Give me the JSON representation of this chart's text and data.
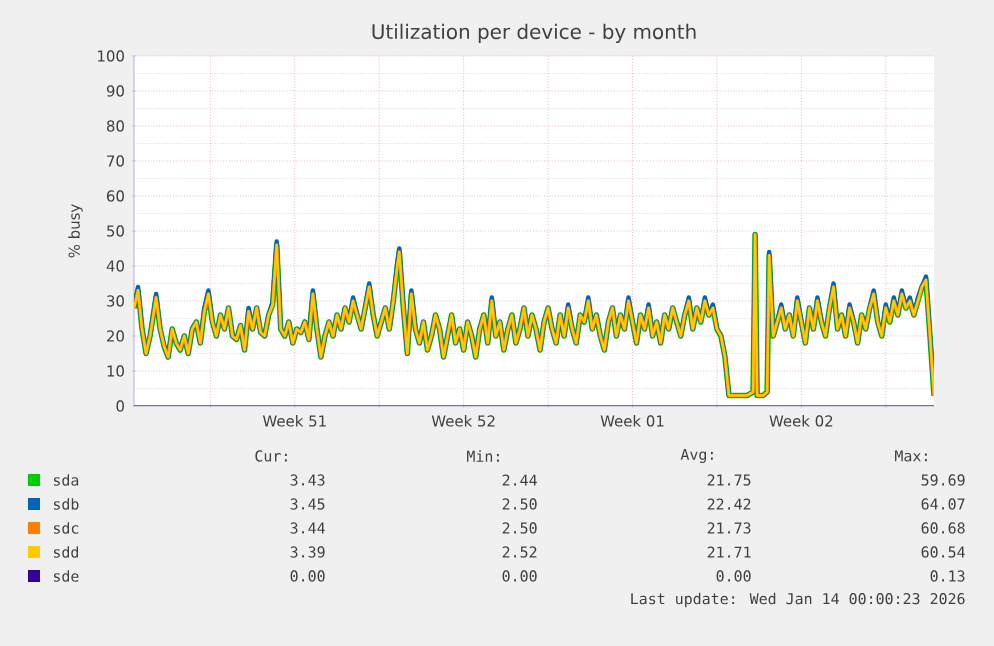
{
  "chart_data": {
    "type": "line",
    "title": "Utilization per device - by month",
    "ylabel": "% busy",
    "x": [
      "2025-12-11T20:00",
      "2025-12-12T00:00",
      "2025-12-12T04:00",
      "2025-12-12T08:00",
      "2025-12-12T12:00",
      "2025-12-12T18:00",
      "2025-12-12T22:00",
      "2025-12-13T02:00",
      "2025-12-13T06:00",
      "2025-12-13T10:00",
      "2025-12-13T14:00",
      "2025-12-13T18:00",
      "2025-12-13T22:00",
      "2025-12-14T02:00",
      "2025-12-14T06:00",
      "2025-12-14T10:00",
      "2025-12-14T14:00",
      "2025-12-14T18:00",
      "2025-12-14T22:00",
      "2025-12-15T02:00",
      "2025-12-15T06:00",
      "2025-12-15T10:00",
      "2025-12-15T14:00",
      "2025-12-15T18:00",
      "2025-12-15T22:00",
      "2025-12-16T02:00",
      "2025-12-16T06:00",
      "2025-12-16T10:00",
      "2025-12-16T14:00",
      "2025-12-16T18:00",
      "2025-12-16T22:00",
      "2025-12-17T02:00",
      "2025-12-17T06:00",
      "2025-12-17T10:00",
      "2025-12-17T14:00",
      "2025-12-17T18:00",
      "2025-12-17T22:00",
      "2025-12-18T02:00",
      "2025-12-18T06:00",
      "2025-12-18T10:00",
      "2025-12-18T14:00",
      "2025-12-18T18:00",
      "2025-12-18T22:00",
      "2025-12-19T02:00",
      "2025-12-19T06:00",
      "2025-12-19T10:00",
      "2025-12-19T14:00",
      "2025-12-19T18:00",
      "2025-12-19T22:00",
      "2025-12-20T02:00",
      "2025-12-20T06:00",
      "2025-12-20T10:00",
      "2025-12-20T14:00",
      "2025-12-20T18:00",
      "2025-12-20T22:00",
      "2025-12-21T02:00",
      "2025-12-21T06:00",
      "2025-12-21T10:00",
      "2025-12-21T14:00",
      "2025-12-21T18:00",
      "2025-12-21T22:00",
      "2025-12-22T02:00",
      "2025-12-22T06:00",
      "2025-12-22T10:00",
      "2025-12-22T14:00",
      "2025-12-22T18:00",
      "2025-12-22T20:00",
      "2025-12-23T00:00",
      "2025-12-23T04:00",
      "2025-12-23T08:00",
      "2025-12-23T12:00",
      "2025-12-23T16:00",
      "2025-12-23T20:00",
      "2025-12-24T00:00",
      "2025-12-24T04:00",
      "2025-12-24T08:00",
      "2025-12-24T12:00",
      "2025-12-24T16:00",
      "2025-12-24T20:00",
      "2025-12-25T00:00",
      "2025-12-25T04:00",
      "2025-12-25T08:00",
      "2025-12-25T12:00",
      "2025-12-25T16:00",
      "2025-12-25T20:00",
      "2025-12-26T00:00",
      "2025-12-26T04:00",
      "2025-12-26T08:00",
      "2025-12-26T12:00",
      "2025-12-26T16:00",
      "2025-12-26T20:00",
      "2025-12-27T00:00",
      "2025-12-27T04:00",
      "2025-12-27T08:00",
      "2025-12-27T12:00",
      "2025-12-27T16:00",
      "2025-12-27T20:00",
      "2025-12-28T00:00",
      "2025-12-28T04:00",
      "2025-12-28T08:00",
      "2025-12-28T12:00",
      "2025-12-28T16:00",
      "2025-12-28T20:00",
      "2025-12-29T00:00",
      "2025-12-29T04:00",
      "2025-12-29T08:00",
      "2025-12-29T12:00",
      "2025-12-29T16:00",
      "2025-12-29T20:00",
      "2025-12-30T00:00",
      "2025-12-30T04:00",
      "2025-12-30T08:00",
      "2025-12-30T12:00",
      "2025-12-30T16:00",
      "2025-12-30T20:00",
      "2025-12-31T00:00",
      "2025-12-31T04:00",
      "2025-12-31T08:00",
      "2025-12-31T12:00",
      "2025-12-31T16:00",
      "2025-12-31T20:00",
      "2026-01-01T00:00",
      "2026-01-01T04:00",
      "2026-01-01T08:00",
      "2026-01-01T12:00",
      "2026-01-01T16:00",
      "2026-01-01T20:00",
      "2026-01-02T00:00",
      "2026-01-02T04:00",
      "2026-01-02T08:00",
      "2026-01-02T12:00",
      "2026-01-02T16:00",
      "2026-01-02T20:00",
      "2026-01-03T00:00",
      "2026-01-03T04:00",
      "2026-01-03T08:00",
      "2026-01-03T12:00",
      "2026-01-03T16:00",
      "2026-01-03T20:00",
      "2026-01-04T00:00",
      "2026-01-04T04:00",
      "2026-01-04T08:00",
      "2026-01-04T12:00",
      "2026-01-04T16:00",
      "2026-01-04T20:00",
      "2026-01-05T00:00",
      "2026-01-05T04:00",
      "2026-01-05T08:00",
      "2026-01-05T12:00",
      "2026-01-05T18:00",
      "2026-01-06T00:00",
      "2026-01-06T06:00",
      "2026-01-06T12:00",
      "2026-01-06T14:00",
      "2026-01-06T16:00",
      "2026-01-06T22:00",
      "2026-01-07T02:00",
      "2026-01-07T04:00",
      "2026-01-07T08:00",
      "2026-01-07T12:00",
      "2026-01-07T16:00",
      "2026-01-07T20:00",
      "2026-01-08T00:00",
      "2026-01-08T04:00",
      "2026-01-08T08:00",
      "2026-01-08T12:00",
      "2026-01-08T16:00",
      "2026-01-08T20:00",
      "2026-01-09T00:00",
      "2026-01-09T04:00",
      "2026-01-09T08:00",
      "2026-01-09T12:00",
      "2026-01-09T16:00",
      "2026-01-09T20:00",
      "2026-01-10T00:00",
      "2026-01-10T04:00",
      "2026-01-10T08:00",
      "2026-01-10T12:00",
      "2026-01-10T16:00",
      "2026-01-10T20:00",
      "2026-01-11T00:00",
      "2026-01-11T04:00",
      "2026-01-11T08:00",
      "2026-01-11T12:00",
      "2026-01-11T16:00",
      "2026-01-11T20:00",
      "2026-01-12T00:00",
      "2026-01-12T04:00",
      "2026-01-12T08:00",
      "2026-01-12T12:00",
      "2026-01-12T16:00",
      "2026-01-12T20:00",
      "2026-01-13T00:00",
      "2026-01-13T04:00",
      "2026-01-13T08:00",
      "2026-01-13T12:00",
      "2026-01-13T16:00",
      "2026-01-13T20:00",
      "2026-01-14T00:00"
    ],
    "series": [
      {
        "name": "sda",
        "color": "#00cc00",
        "values": [
          28,
          33,
          22,
          15,
          20,
          31,
          22,
          17,
          14,
          22,
          18,
          16,
          20,
          15,
          22,
          24,
          18,
          27,
          32,
          24,
          20,
          26,
          22,
          28,
          20,
          19,
          23,
          16,
          27,
          22,
          28,
          21,
          20,
          26,
          29,
          46,
          22,
          20,
          24,
          18,
          22,
          21,
          24,
          19,
          32,
          22,
          14,
          20,
          24,
          20,
          26,
          22,
          28,
          24,
          30,
          26,
          22,
          28,
          34,
          26,
          20,
          24,
          28,
          22,
          30,
          40,
          44,
          28,
          15,
          32,
          22,
          18,
          24,
          16,
          20,
          26,
          22,
          14,
          20,
          26,
          18,
          22,
          16,
          24,
          20,
          14,
          22,
          26,
          18,
          30,
          20,
          24,
          16,
          22,
          26,
          18,
          22,
          28,
          20,
          26,
          22,
          16,
          24,
          28,
          22,
          18,
          26,
          20,
          28,
          22,
          18,
          26,
          24,
          30,
          22,
          26,
          20,
          16,
          24,
          28,
          20,
          26,
          22,
          30,
          24,
          18,
          26,
          22,
          28,
          20,
          24,
          18,
          26,
          22,
          28,
          24,
          20,
          26,
          30,
          22,
          28,
          24,
          30,
          26,
          28,
          22,
          20,
          14,
          3,
          3,
          3,
          3,
          4,
          49,
          3,
          3,
          4,
          43,
          20,
          24,
          28,
          22,
          26,
          20,
          30,
          24,
          18,
          28,
          22,
          30,
          24,
          20,
          28,
          34,
          22,
          26,
          20,
          28,
          24,
          18,
          26,
          22,
          28,
          32,
          24,
          20,
          28,
          24,
          30,
          26,
          32,
          28,
          30,
          26,
          30,
          34,
          36,
          20,
          3
        ]
      },
      {
        "name": "sdb",
        "color": "#0066b3",
        "values": [
          28,
          34,
          22,
          15,
          20,
          32,
          22,
          17,
          14,
          22,
          18,
          16,
          20,
          15,
          22,
          24,
          18,
          28,
          33,
          24,
          20,
          26,
          22,
          28,
          20,
          19,
          23,
          16,
          28,
          22,
          28,
          21,
          20,
          26,
          30,
          47,
          22,
          20,
          24,
          18,
          22,
          21,
          24,
          19,
          33,
          22,
          14,
          20,
          24,
          20,
          26,
          22,
          28,
          24,
          31,
          26,
          22,
          28,
          35,
          26,
          20,
          24,
          28,
          22,
          30,
          41,
          45,
          28,
          15,
          33,
          22,
          18,
          24,
          16,
          20,
          26,
          22,
          14,
          20,
          26,
          18,
          22,
          16,
          24,
          20,
          14,
          22,
          26,
          18,
          31,
          20,
          24,
          16,
          22,
          26,
          18,
          22,
          28,
          20,
          26,
          22,
          16,
          24,
          28,
          22,
          18,
          26,
          20,
          29,
          22,
          18,
          26,
          24,
          31,
          22,
          26,
          20,
          16,
          24,
          28,
          20,
          26,
          22,
          31,
          24,
          18,
          26,
          22,
          29,
          20,
          24,
          18,
          26,
          22,
          28,
          24,
          20,
          26,
          31,
          22,
          28,
          24,
          31,
          26,
          29,
          22,
          20,
          14,
          3,
          3,
          3,
          3,
          4,
          49,
          3,
          3,
          4,
          44,
          20,
          24,
          29,
          22,
          26,
          20,
          31,
          24,
          18,
          28,
          22,
          31,
          24,
          20,
          28,
          35,
          22,
          26,
          20,
          29,
          24,
          18,
          26,
          22,
          28,
          33,
          24,
          20,
          29,
          24,
          31,
          26,
          33,
          28,
          31,
          26,
          31,
          34,
          37,
          20,
          3
        ]
      },
      {
        "name": "sdc",
        "color": "#ff8000",
        "values": [
          28,
          33,
          22,
          15,
          20,
          31,
          22,
          17,
          14,
          22,
          18,
          16,
          20,
          15,
          22,
          24,
          18,
          27,
          32,
          24,
          20,
          26,
          22,
          28,
          20,
          19,
          23,
          16,
          27,
          22,
          28,
          21,
          20,
          26,
          29,
          46,
          22,
          20,
          24,
          18,
          22,
          21,
          24,
          19,
          32,
          22,
          14,
          20,
          24,
          20,
          26,
          22,
          28,
          24,
          30,
          26,
          22,
          28,
          34,
          26,
          20,
          24,
          28,
          22,
          30,
          40,
          44,
          28,
          15,
          32,
          22,
          18,
          24,
          16,
          20,
          26,
          22,
          14,
          20,
          26,
          18,
          22,
          16,
          24,
          20,
          14,
          22,
          26,
          18,
          30,
          20,
          24,
          16,
          22,
          26,
          18,
          22,
          28,
          20,
          26,
          22,
          16,
          24,
          28,
          22,
          18,
          26,
          20,
          28,
          22,
          18,
          26,
          24,
          30,
          22,
          26,
          20,
          16,
          24,
          28,
          20,
          26,
          22,
          30,
          24,
          18,
          26,
          22,
          28,
          20,
          24,
          18,
          26,
          22,
          28,
          24,
          20,
          26,
          30,
          22,
          28,
          24,
          30,
          26,
          28,
          22,
          20,
          14,
          3,
          3,
          3,
          3,
          4,
          49,
          3,
          3,
          4,
          43,
          20,
          24,
          28,
          22,
          26,
          20,
          30,
          24,
          18,
          28,
          22,
          30,
          24,
          20,
          28,
          34,
          22,
          26,
          20,
          28,
          24,
          18,
          26,
          22,
          28,
          32,
          24,
          20,
          28,
          24,
          30,
          26,
          32,
          28,
          30,
          26,
          30,
          34,
          36,
          20,
          3
        ]
      },
      {
        "name": "sdd",
        "color": "#ffcc00",
        "values": [
          28,
          33,
          22,
          15,
          20,
          31,
          22,
          17,
          14,
          22,
          18,
          16,
          20,
          15,
          22,
          24,
          18,
          27,
          32,
          24,
          20,
          26,
          22,
          28,
          20,
          19,
          23,
          16,
          27,
          22,
          28,
          21,
          20,
          26,
          29,
          46,
          22,
          20,
          24,
          18,
          22,
          21,
          24,
          19,
          32,
          22,
          14,
          20,
          24,
          20,
          26,
          22,
          28,
          24,
          30,
          26,
          22,
          28,
          34,
          26,
          20,
          24,
          28,
          22,
          30,
          40,
          44,
          28,
          15,
          32,
          22,
          18,
          24,
          16,
          20,
          26,
          22,
          14,
          20,
          26,
          18,
          22,
          16,
          24,
          20,
          14,
          22,
          26,
          18,
          30,
          20,
          24,
          16,
          22,
          26,
          18,
          22,
          28,
          20,
          26,
          22,
          16,
          24,
          28,
          22,
          18,
          26,
          20,
          28,
          22,
          18,
          26,
          24,
          30,
          22,
          26,
          20,
          16,
          24,
          28,
          20,
          26,
          22,
          30,
          24,
          18,
          26,
          22,
          28,
          20,
          24,
          18,
          26,
          22,
          28,
          24,
          20,
          26,
          30,
          22,
          28,
          24,
          30,
          26,
          28,
          22,
          20,
          14,
          3,
          3,
          3,
          3,
          4,
          49,
          3,
          3,
          4,
          43,
          20,
          24,
          28,
          22,
          26,
          20,
          30,
          24,
          18,
          28,
          22,
          30,
          24,
          20,
          28,
          34,
          22,
          26,
          20,
          28,
          24,
          18,
          26,
          22,
          28,
          32,
          24,
          20,
          28,
          24,
          30,
          26,
          32,
          28,
          30,
          26,
          30,
          34,
          36,
          20,
          3
        ]
      },
      {
        "name": "sde",
        "color": "#330099",
        "x": [
          "2025-12-11T20:00",
          "2026-01-14T00:00"
        ],
        "values": [
          0,
          0
        ]
      }
    ],
    "xlim": [
      "2025-12-11T20:00",
      "2026-01-14T00:00"
    ],
    "xticks": [
      {
        "value": "2025-12-15",
        "label": null
      },
      {
        "value": "2025-12-18T12:00",
        "label": "Week 51"
      },
      {
        "value": "2025-12-22",
        "label": null
      },
      {
        "value": "2025-12-25T12:00",
        "label": "Week 52"
      },
      {
        "value": "2025-12-29",
        "label": null
      },
      {
        "value": "2026-01-01T12:00",
        "label": "Week 01"
      },
      {
        "value": "2026-01-05",
        "label": null
      },
      {
        "value": "2026-01-08T12:00",
        "label": "Week 02"
      },
      {
        "value": "2026-01-12",
        "label": null
      }
    ],
    "ylim": [
      0,
      100
    ],
    "yticks": [
      0,
      10,
      20,
      30,
      40,
      50,
      60,
      70,
      80,
      90,
      100
    ],
    "grid": true,
    "legend": "bottom",
    "annotations": [
      "Cur:",
      "Min:",
      "Avg:",
      "Max:",
      "3.43",
      "2.44",
      "21.75",
      "59.69",
      "3.45",
      "2.50",
      "22.42",
      "64.07",
      "3.44",
      "2.50",
      "21.73",
      "60.68",
      "3.39",
      "2.52",
      "21.71",
      "60.54",
      "0.00",
      "0.00",
      "0.00",
      "0.13",
      "Last update: Wed Jan 14 00:00:23 2026"
    ]
  }
}
